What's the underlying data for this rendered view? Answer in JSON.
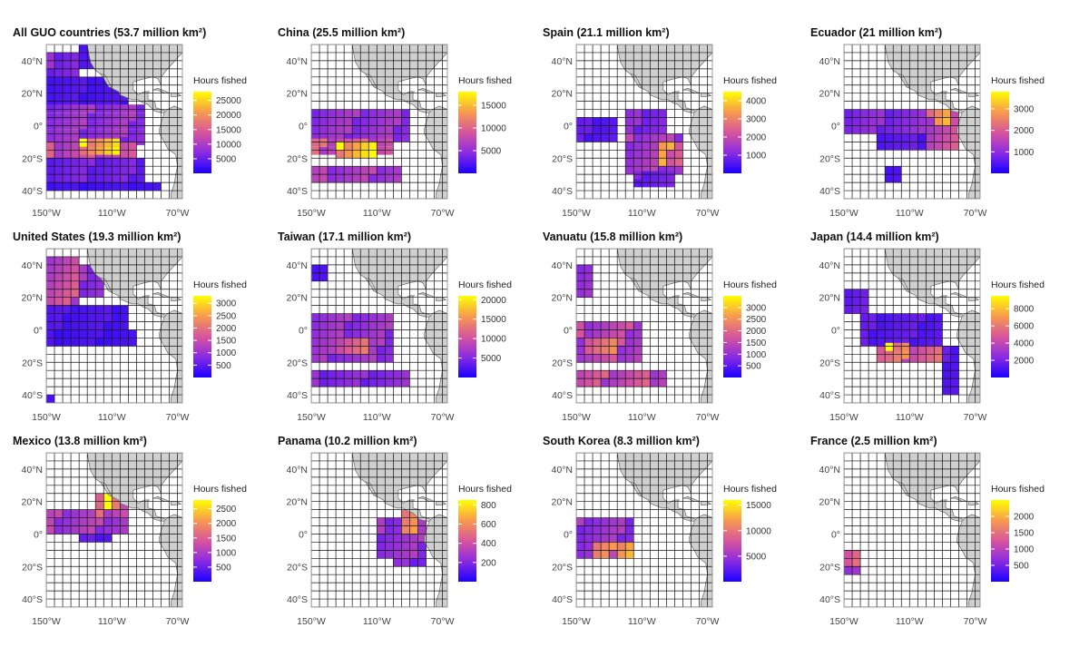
{
  "chart_data": {
    "type": "heatmap",
    "figure": "Fishing effort maps, eastern Pacific",
    "legend_title": "Hours fished",
    "map_extent": {
      "lon": [
        -150,
        -67
      ],
      "lat": [
        -45,
        50
      ]
    },
    "x_ticks": [
      {
        "value": -150,
        "label": "150°W"
      },
      {
        "value": -110,
        "label": "110°W"
      },
      {
        "value": -70,
        "label": "70°W"
      }
    ],
    "y_ticks": [
      {
        "value": 40,
        "label": "40°N"
      },
      {
        "value": 20,
        "label": "20°N"
      },
      {
        "value": 0,
        "label": "0°"
      },
      {
        "value": -20,
        "label": "20°S"
      },
      {
        "value": -40,
        "label": "40°S"
      }
    ],
    "color_scale": [
      "#1a00ff",
      "#8a2be2",
      "#d7559c",
      "#f79a4f",
      "#ffff00"
    ],
    "colors": {
      "land": "#cfcfcf",
      "coast": "#666666",
      "grid": "#111111",
      "no_data": "#ffffff"
    },
    "panels": [
      {
        "title": "All GUO countries (53.7 million km²)",
        "max": 28000,
        "legend_ticks": [
          5000,
          10000,
          15000,
          20000,
          25000
        ],
        "grid_row": 0,
        "grid_col": 0,
        "regions": [
          {
            "lon": [
              -150,
              -130
            ],
            "lat": [
              30,
              45
            ],
            "v": 0.25
          },
          {
            "lon": [
              -130,
              -115
            ],
            "lat": [
              35,
              48
            ],
            "v": 0.12
          },
          {
            "lon": [
              -150,
              -100
            ],
            "lat": [
              10,
              30
            ],
            "v": 0.12
          },
          {
            "lon": [
              -150,
              -90
            ],
            "lat": [
              -12,
              10
            ],
            "v": 0.3
          },
          {
            "lon": [
              -150,
              -95
            ],
            "lat": [
              -20,
              -12
            ],
            "v": 0.45
          },
          {
            "lon": [
              -130,
              -105
            ],
            "lat": [
              -18,
              -12
            ],
            "v": 0.85
          },
          {
            "lon": [
              -150,
              -90
            ],
            "lat": [
              -35,
              -20
            ],
            "v": 0.2
          },
          {
            "lon": [
              -150,
              -80
            ],
            "lat": [
              -40,
              -35
            ],
            "v": 0.1
          }
        ]
      },
      {
        "title": "China (25.5 million km²)",
        "max": 18000,
        "legend_ticks": [
          5000,
          10000,
          15000
        ],
        "grid_row": 0,
        "grid_col": 1,
        "regions": [
          {
            "lon": [
              -150,
              -90
            ],
            "lat": [
              -10,
              10
            ],
            "v": 0.3
          },
          {
            "lon": [
              -150,
              -100
            ],
            "lat": [
              -18,
              -10
            ],
            "v": 0.5
          },
          {
            "lon": [
              -135,
              -110
            ],
            "lat": [
              -20,
              -14
            ],
            "v": 0.9
          },
          {
            "lon": [
              -150,
              -95
            ],
            "lat": [
              -35,
              -25
            ],
            "v": 0.35
          }
        ]
      },
      {
        "title": "Spain (21.1 million km²)",
        "max": 4500,
        "legend_ticks": [
          1000,
          2000,
          3000,
          4000
        ],
        "grid_row": 0,
        "grid_col": 2,
        "regions": [
          {
            "lon": [
              -150,
              -125
            ],
            "lat": [
              -10,
              5
            ],
            "v": 0.15
          },
          {
            "lon": [
              -120,
              -95
            ],
            "lat": [
              -5,
              10
            ],
            "v": 0.25
          },
          {
            "lon": [
              -120,
              -85
            ],
            "lat": [
              -30,
              -5
            ],
            "v": 0.35
          },
          {
            "lon": [
              -100,
              -85
            ],
            "lat": [
              -25,
              -10
            ],
            "v": 0.65
          },
          {
            "lon": [
              -115,
              -90
            ],
            "lat": [
              -38,
              -30
            ],
            "v": 0.2
          }
        ]
      },
      {
        "title": "Ecuador (21 million km²)",
        "max": 3800,
        "legend_ticks": [
          1000,
          2000,
          3000
        ],
        "grid_row": 0,
        "grid_col": 3,
        "regions": [
          {
            "lon": [
              -150,
              -85
            ],
            "lat": [
              -5,
              8
            ],
            "v": 0.25
          },
          {
            "lon": [
              -100,
              -80
            ],
            "lat": [
              -15,
              8
            ],
            "v": 0.45
          },
          {
            "lon": [
              -95,
              -85
            ],
            "lat": [
              0,
              6
            ],
            "v": 0.9
          },
          {
            "lon": [
              -130,
              -95
            ],
            "lat": [
              -15,
              -5
            ],
            "v": 0.15
          },
          {
            "lon": [
              -125,
              -115
            ],
            "lat": [
              -35,
              -25
            ],
            "v": 0.1
          }
        ]
      },
      {
        "title": "United States (19.3 million km²)",
        "max": 3300,
        "legend_ticks": [
          500,
          1000,
          1500,
          2000,
          2500,
          3000
        ],
        "grid_row": 1,
        "grid_col": 0,
        "regions": [
          {
            "lon": [
              -150,
              -130
            ],
            "lat": [
              15,
              45
            ],
            "v": 0.45
          },
          {
            "lon": [
              -130,
              -115
            ],
            "lat": [
              20,
              40
            ],
            "v": 0.3
          },
          {
            "lon": [
              -150,
              -100
            ],
            "lat": [
              0,
              15
            ],
            "v": 0.12
          },
          {
            "lon": [
              -150,
              -95
            ],
            "lat": [
              -10,
              0
            ],
            "v": 0.1
          },
          {
            "lon": [
              -150,
              -145
            ],
            "lat": [
              -45,
              -40
            ],
            "v": 0.1
          }
        ]
      },
      {
        "title": "Taiwan (17.1 million km²)",
        "max": 21000,
        "legend_ticks": [
          5000,
          10000,
          15000,
          20000
        ],
        "grid_row": 1,
        "grid_col": 1,
        "regions": [
          {
            "lon": [
              -150,
              -140
            ],
            "lat": [
              30,
              40
            ],
            "v": 0.1
          },
          {
            "lon": [
              -150,
              -100
            ],
            "lat": [
              -20,
              10
            ],
            "v": 0.3
          },
          {
            "lon": [
              -135,
              -115
            ],
            "lat": [
              -15,
              -5
            ],
            "v": 0.6
          },
          {
            "lon": [
              -150,
              -90
            ],
            "lat": [
              -35,
              -25
            ],
            "v": 0.25
          }
        ]
      },
      {
        "title": "Vanuatu (15.8 million km²)",
        "max": 3500,
        "legend_ticks": [
          500,
          1000,
          1500,
          2000,
          2500,
          3000
        ],
        "grid_row": 1,
        "grid_col": 2,
        "regions": [
          {
            "lon": [
              -150,
              -140
            ],
            "lat": [
              20,
              40
            ],
            "v": 0.3
          },
          {
            "lon": [
              -150,
              -110
            ],
            "lat": [
              -20,
              5
            ],
            "v": 0.4
          },
          {
            "lon": [
              -145,
              -125
            ],
            "lat": [
              -15,
              -5
            ],
            "v": 0.6
          },
          {
            "lon": [
              -150,
              -95
            ],
            "lat": [
              -35,
              -25
            ],
            "v": 0.45
          }
        ]
      },
      {
        "title": "Japan (14.4 million km²)",
        "max": 9500,
        "legend_ticks": [
          2000,
          4000,
          6000,
          8000
        ],
        "grid_row": 1,
        "grid_col": 3,
        "regions": [
          {
            "lon": [
              -150,
              -135
            ],
            "lat": [
              10,
              22
            ],
            "v": 0.2
          },
          {
            "lon": [
              -140,
              -90
            ],
            "lat": [
              -10,
              10
            ],
            "v": 0.15
          },
          {
            "lon": [
              -130,
              -90
            ],
            "lat": [
              -20,
              -10
            ],
            "v": 0.55
          },
          {
            "lon": [
              -125,
              -110
            ],
            "lat": [
              -18,
              -10
            ],
            "v": 0.8
          },
          {
            "lon": [
              -90,
              -80
            ],
            "lat": [
              -40,
              -10
            ],
            "v": 0.15
          }
        ]
      },
      {
        "title": "Mexico (13.8 million km²)",
        "max": 2800,
        "legend_ticks": [
          500,
          1000,
          1500,
          2000,
          2500
        ],
        "grid_row": 2,
        "grid_col": 0,
        "regions": [
          {
            "lon": [
              -150,
              -100
            ],
            "lat": [
              0,
              15
            ],
            "v": 0.35
          },
          {
            "lon": [
              -120,
              -100
            ],
            "lat": [
              10,
              25
            ],
            "v": 0.5
          },
          {
            "lon": [
              -115,
              -105
            ],
            "lat": [
              15,
              25
            ],
            "v": 0.85
          },
          {
            "lon": [
              -130,
              -110
            ],
            "lat": [
              -5,
              5
            ],
            "v": 0.15
          }
        ]
      },
      {
        "title": "Panama (10.2 million km²)",
        "max": 850,
        "legend_ticks": [
          200,
          400,
          600,
          800
        ],
        "grid_row": 2,
        "grid_col": 1,
        "regions": [
          {
            "lon": [
              -110,
              -80
            ],
            "lat": [
              -15,
              10
            ],
            "v": 0.3
          },
          {
            "lon": [
              -95,
              -85
            ],
            "lat": [
              0,
              12
            ],
            "v": 0.7
          },
          {
            "lon": [
              -100,
              -80
            ],
            "lat": [
              -20,
              0
            ],
            "v": 0.25
          }
        ]
      },
      {
        "title": "South Korea (8.3 million km²)",
        "max": 16000,
        "legend_ticks": [
          5000,
          10000,
          15000
        ],
        "grid_row": 2,
        "grid_col": 2,
        "regions": [
          {
            "lon": [
              -150,
              -115
            ],
            "lat": [
              -15,
              10
            ],
            "v": 0.3
          },
          {
            "lon": [
              -140,
              -120
            ],
            "lat": [
              -15,
              -5
            ],
            "v": 0.6
          },
          {
            "lon": [
              -125,
              -115
            ],
            "lat": [
              -15,
              -5
            ],
            "v": 0.9
          }
        ]
      },
      {
        "title": "France (2.5 million km²)",
        "max": 2500,
        "legend_ticks": [
          500,
          1000,
          1500,
          2000
        ],
        "grid_row": 2,
        "grid_col": 3,
        "regions": [
          {
            "lon": [
              -150,
              -140
            ],
            "lat": [
              -25,
              -10
            ],
            "v": 0.4
          },
          {
            "lon": [
              -145,
              -140
            ],
            "lat": [
              -20,
              -10
            ],
            "v": 0.8
          }
        ]
      }
    ]
  }
}
